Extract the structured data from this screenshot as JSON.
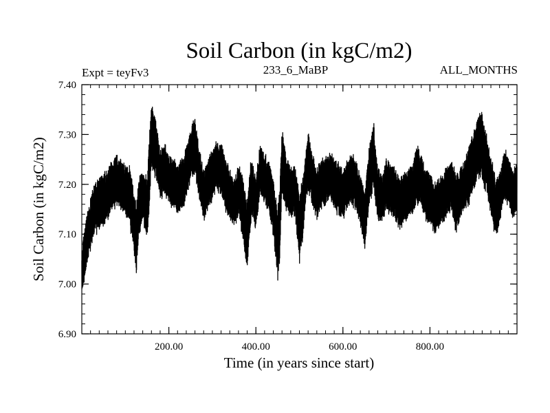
{
  "chart_data": {
    "type": "line",
    "title": "Soil Carbon (in kgC/m2)",
    "subtitle_left": "Expt = teyFv3",
    "subtitle_center": "233_6_MaBP",
    "subtitle_right": "ALL_MONTHS",
    "xlabel": "Time (in years since start)",
    "ylabel": "Soil Carbon (in kgC/m2)",
    "xlim": [
      0,
      1000
    ],
    "ylim": [
      6.9,
      7.4
    ],
    "x_ticks": [
      {
        "value": 200,
        "label": "200.00"
      },
      {
        "value": 400,
        "label": "400.00"
      },
      {
        "value": 600,
        "label": "600.00"
      },
      {
        "value": 800,
        "label": "800.00"
      }
    ],
    "y_ticks": [
      {
        "value": 6.9,
        "label": "6.90"
      },
      {
        "value": 7.0,
        "label": "7.00"
      },
      {
        "value": 7.1,
        "label": "7.10"
      },
      {
        "value": 7.2,
        "label": "7.20"
      },
      {
        "value": 7.3,
        "label": "7.30"
      },
      {
        "value": 7.4,
        "label": "7.40"
      }
    ],
    "x_minor_step": 20,
    "y_minor_step": 0.02,
    "series": [
      {
        "name": "Soil Carbon",
        "color": "#000000",
        "x": [
          0,
          5,
          10,
          15,
          20,
          25,
          30,
          40,
          50,
          60,
          70,
          80,
          90,
          100,
          110,
          120,
          125,
          130,
          140,
          150,
          155,
          160,
          165,
          170,
          175,
          180,
          190,
          200,
          210,
          220,
          230,
          240,
          250,
          260,
          270,
          280,
          290,
          300,
          310,
          320,
          330,
          340,
          350,
          360,
          370,
          380,
          390,
          400,
          410,
          420,
          430,
          440,
          450,
          455,
          460,
          470,
          480,
          490,
          500,
          510,
          515,
          520,
          530,
          540,
          550,
          560,
          570,
          580,
          590,
          600,
          610,
          620,
          630,
          640,
          650,
          660,
          670,
          680,
          690,
          700,
          710,
          720,
          730,
          740,
          750,
          760,
          770,
          780,
          790,
          800,
          810,
          820,
          830,
          840,
          850,
          860,
          870,
          880,
          890,
          900,
          910,
          920,
          930,
          940,
          950,
          960,
          970,
          980,
          990,
          1000
        ],
        "center": [
          7.02,
          7.05,
          7.08,
          7.1,
          7.12,
          7.14,
          7.15,
          7.16,
          7.17,
          7.18,
          7.2,
          7.21,
          7.2,
          7.19,
          7.18,
          7.12,
          7.09,
          7.15,
          7.18,
          7.15,
          7.22,
          7.3,
          7.28,
          7.27,
          7.25,
          7.22,
          7.23,
          7.21,
          7.2,
          7.19,
          7.2,
          7.22,
          7.26,
          7.28,
          7.22,
          7.18,
          7.2,
          7.22,
          7.24,
          7.23,
          7.2,
          7.18,
          7.16,
          7.19,
          7.15,
          7.1,
          7.2,
          7.16,
          7.23,
          7.21,
          7.2,
          7.15,
          7.08,
          7.12,
          7.25,
          7.2,
          7.18,
          7.19,
          7.11,
          7.17,
          7.22,
          7.25,
          7.21,
          7.18,
          7.2,
          7.21,
          7.22,
          7.2,
          7.19,
          7.18,
          7.2,
          7.21,
          7.2,
          7.17,
          7.13,
          7.21,
          7.26,
          7.18,
          7.17,
          7.2,
          7.19,
          7.18,
          7.16,
          7.17,
          7.18,
          7.19,
          7.22,
          7.21,
          7.18,
          7.17,
          7.15,
          7.16,
          7.17,
          7.19,
          7.2,
          7.16,
          7.18,
          7.2,
          7.22,
          7.25,
          7.27,
          7.28,
          7.24,
          7.2,
          7.15,
          7.17,
          7.22,
          7.21,
          7.18,
          7.19
        ],
        "amplitude": [
          0.04,
          0.05,
          0.05,
          0.05,
          0.05,
          0.05,
          0.05,
          0.05,
          0.05,
          0.05,
          0.05,
          0.05,
          0.05,
          0.05,
          0.06,
          0.06,
          0.07,
          0.06,
          0.05,
          0.06,
          0.07,
          0.07,
          0.06,
          0.06,
          0.05,
          0.05,
          0.05,
          0.05,
          0.05,
          0.05,
          0.05,
          0.05,
          0.05,
          0.06,
          0.05,
          0.05,
          0.05,
          0.05,
          0.05,
          0.05,
          0.05,
          0.05,
          0.05,
          0.05,
          0.06,
          0.07,
          0.06,
          0.05,
          0.05,
          0.05,
          0.05,
          0.06,
          0.07,
          0.07,
          0.07,
          0.05,
          0.05,
          0.05,
          0.07,
          0.06,
          0.05,
          0.06,
          0.05,
          0.05,
          0.05,
          0.05,
          0.05,
          0.05,
          0.05,
          0.05,
          0.05,
          0.05,
          0.05,
          0.05,
          0.06,
          0.06,
          0.07,
          0.05,
          0.05,
          0.05,
          0.05,
          0.05,
          0.05,
          0.05,
          0.05,
          0.05,
          0.06,
          0.05,
          0.05,
          0.05,
          0.05,
          0.05,
          0.05,
          0.05,
          0.05,
          0.06,
          0.05,
          0.05,
          0.06,
          0.06,
          0.06,
          0.07,
          0.06,
          0.06,
          0.06,
          0.05,
          0.05,
          0.05,
          0.05,
          0.05
        ]
      }
    ],
    "grid": false,
    "legend": "none"
  }
}
